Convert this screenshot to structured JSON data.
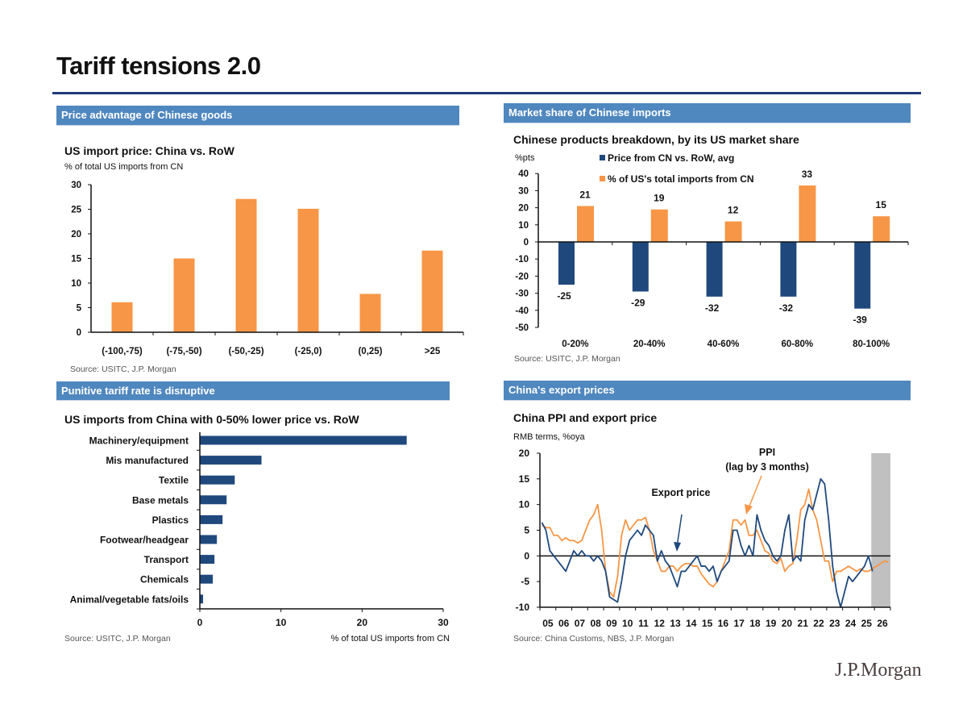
{
  "page": {
    "title": "Tariff tensions 2.0",
    "logo": "J.P.Morgan"
  },
  "panels": [
    {
      "header": "Price advantage of Chinese goods"
    },
    {
      "header": "Market share of Chinese imports"
    },
    {
      "header": "Punitive tariff rate is disruptive"
    },
    {
      "header": "China's export prices"
    }
  ],
  "colors": {
    "orange": "#f79646",
    "navy": "#1f497d",
    "header": "#4f87bf",
    "shade": "#c0c0c0"
  },
  "chart_data": [
    {
      "type": "bar",
      "title": "US import price: China vs. RoW",
      "subtitle": "% of total US imports from CN",
      "categories": [
        "(-100,-75)",
        "(-75,-50)",
        "(-50,-25)",
        "(-25,0)",
        "(0,25)",
        ">25"
      ],
      "values": [
        6.1,
        15,
        27.1,
        25.1,
        7.8,
        16.6
      ],
      "ylim": [
        0,
        30
      ],
      "yticks": [
        "0",
        "5",
        "10",
        "15",
        "20",
        "25",
        "30"
      ],
      "source": "Source: USITC, J.P. Morgan",
      "grid": false
    },
    {
      "type": "bar",
      "title": "Chinese products breakdown, by its US market share",
      "ylabel": "%pts",
      "categories": [
        "0-20%",
        "20-40%",
        "40-60%",
        "60-80%",
        "80-100%"
      ],
      "series": [
        {
          "name": "Price from CN vs. RoW, avg",
          "values": [
            -25,
            -29,
            -32,
            -32,
            -39
          ],
          "labels": [
            "-25",
            "-29",
            "-32",
            "-32",
            "-39"
          ]
        },
        {
          "name": "% of US's total imports from CN",
          "values": [
            21,
            19,
            12,
            33,
            15
          ],
          "labels": [
            "21",
            "19",
            "12",
            "33",
            "15"
          ]
        }
      ],
      "ylim": [
        -50,
        40
      ],
      "yticks": [
        "-50",
        "-40",
        "-30",
        "-20",
        "-10",
        "0",
        "10",
        "20",
        "30",
        "40"
      ],
      "legend": "top-left",
      "source": "Source: USITC, J.P. Morgan",
      "grid": false
    },
    {
      "type": "bar",
      "orientation": "horizontal",
      "title": "US imports from China with 0-50% lower price vs. RoW",
      "categories": [
        "Machinery/equipment",
        "Mis manufactured",
        "Textile",
        "Base metals",
        "Plastics",
        "Footwear/headgear",
        "Transport",
        "Chemicals",
        "Animal/vegetable fats/oils"
      ],
      "values": [
        25.5,
        7.6,
        4.3,
        3.3,
        2.8,
        2.1,
        1.8,
        1.6,
        0.4
      ],
      "xlim": [
        0,
        30
      ],
      "xticks": [
        "0",
        "10",
        "20",
        "30"
      ],
      "xlabel": "% of total US imports from CN",
      "source": "Source: USITC, J.P. Morgan",
      "grid": false
    },
    {
      "type": "line",
      "title": "China PPI and export price",
      "subtitle": "RMB terms, %oya",
      "ylim": [
        -10,
        20
      ],
      "yticks": [
        "-10",
        "-5",
        "0",
        "5",
        "10",
        "15",
        "20"
      ],
      "xlim": [
        "2005",
        "2026"
      ],
      "xticks": [
        "05",
        "06",
        "07",
        "08",
        "09",
        "10",
        "11",
        "12",
        "13",
        "14",
        "15",
        "16",
        "17",
        "18",
        "19",
        "20",
        "21",
        "22",
        "23",
        "24",
        "25",
        "26"
      ],
      "frequency": "quarterly",
      "start": "2005Q1",
      "shaded_forecast_from": "2025Q4",
      "annotations": [
        "Export price",
        "PPI",
        "(lag by 3 months)"
      ],
      "series": [
        {
          "name": "Export price",
          "color": "#1f497d",
          "values": [
            6.5,
            5,
            1,
            0,
            -1,
            -2,
            -3,
            -1,
            1,
            0,
            1,
            0,
            0,
            -1,
            0,
            -1,
            -3,
            -8,
            -8.5,
            -9,
            -5,
            0,
            3,
            4,
            5,
            4,
            6,
            5,
            4,
            -1,
            1,
            -1,
            -2,
            -4,
            -6,
            -3,
            -3,
            -2,
            -1,
            0,
            -2,
            -2,
            -3,
            -2,
            -5,
            -3,
            -2,
            -1,
            5,
            5,
            2,
            0,
            2,
            0,
            8,
            5,
            3,
            2,
            0,
            -1,
            0,
            5,
            8,
            -1,
            0,
            -1,
            7,
            10,
            9,
            12,
            15,
            14,
            7,
            -2,
            -7,
            -10,
            -7,
            -4,
            -5,
            -4,
            -3,
            -2,
            0,
            -3
          ]
        },
        {
          "name": "PPI (lag by 3 months)",
          "color": "#f79646",
          "values": [
            6,
            5.5,
            5.5,
            4,
            4,
            3,
            3.5,
            3,
            3,
            2.5,
            3,
            5,
            7,
            8,
            10,
            5,
            -3,
            -7,
            -8,
            -4,
            4,
            7,
            5,
            6,
            7,
            7,
            7.5,
            5,
            1,
            -1,
            -3,
            -3,
            -2,
            -2,
            -3,
            -2,
            -1.5,
            -1.5,
            -2,
            -2,
            -3.5,
            -4.5,
            -5.5,
            -6,
            -5,
            -3,
            -1,
            1,
            7,
            7,
            6,
            7,
            4,
            4,
            5,
            3,
            1,
            0.5,
            -1,
            -1.5,
            -0.5,
            -3,
            -2,
            -1.5,
            3,
            9,
            10,
            13,
            9,
            7,
            3,
            -1,
            -1,
            -5,
            -3,
            -3,
            -2.5,
            -2,
            -2.5,
            -3,
            -2.5,
            -3,
            -3,
            -2.5,
            -2,
            -1.5,
            -1,
            -1.2
          ]
        }
      ],
      "source": "Source: China Customs, NBS, J.P. Morgan",
      "grid": false
    }
  ]
}
